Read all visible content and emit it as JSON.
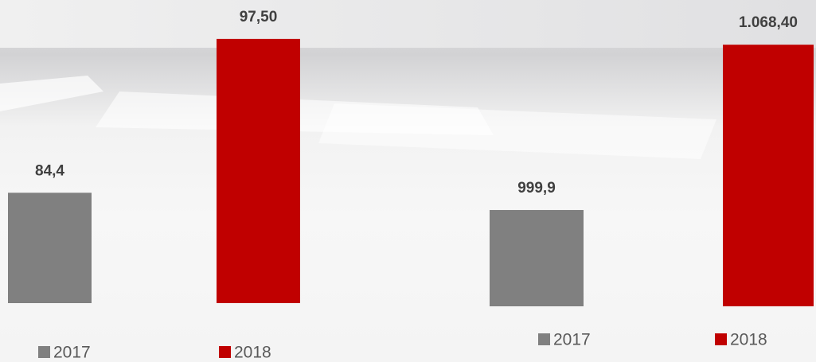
{
  "chart_data": [
    {
      "type": "bar",
      "ylim": [
        75,
        100
      ],
      "series": [
        {
          "name": "2017",
          "color": "#808080",
          "values": [
            84.4
          ],
          "value_labels": [
            "84,4"
          ]
        },
        {
          "name": "2018",
          "color": "#c00000",
          "values": [
            97.5
          ],
          "value_labels": [
            "97,50"
          ]
        }
      ]
    },
    {
      "type": "bar",
      "ylim": [
        960,
        1080
      ],
      "series": [
        {
          "name": "2017",
          "color": "#808080",
          "values": [
            999.9
          ],
          "value_labels": [
            "999,9"
          ]
        },
        {
          "name": "2018",
          "color": "#c00000",
          "values": [
            1068.4
          ],
          "value_labels": [
            "1.068,40"
          ]
        }
      ]
    }
  ]
}
